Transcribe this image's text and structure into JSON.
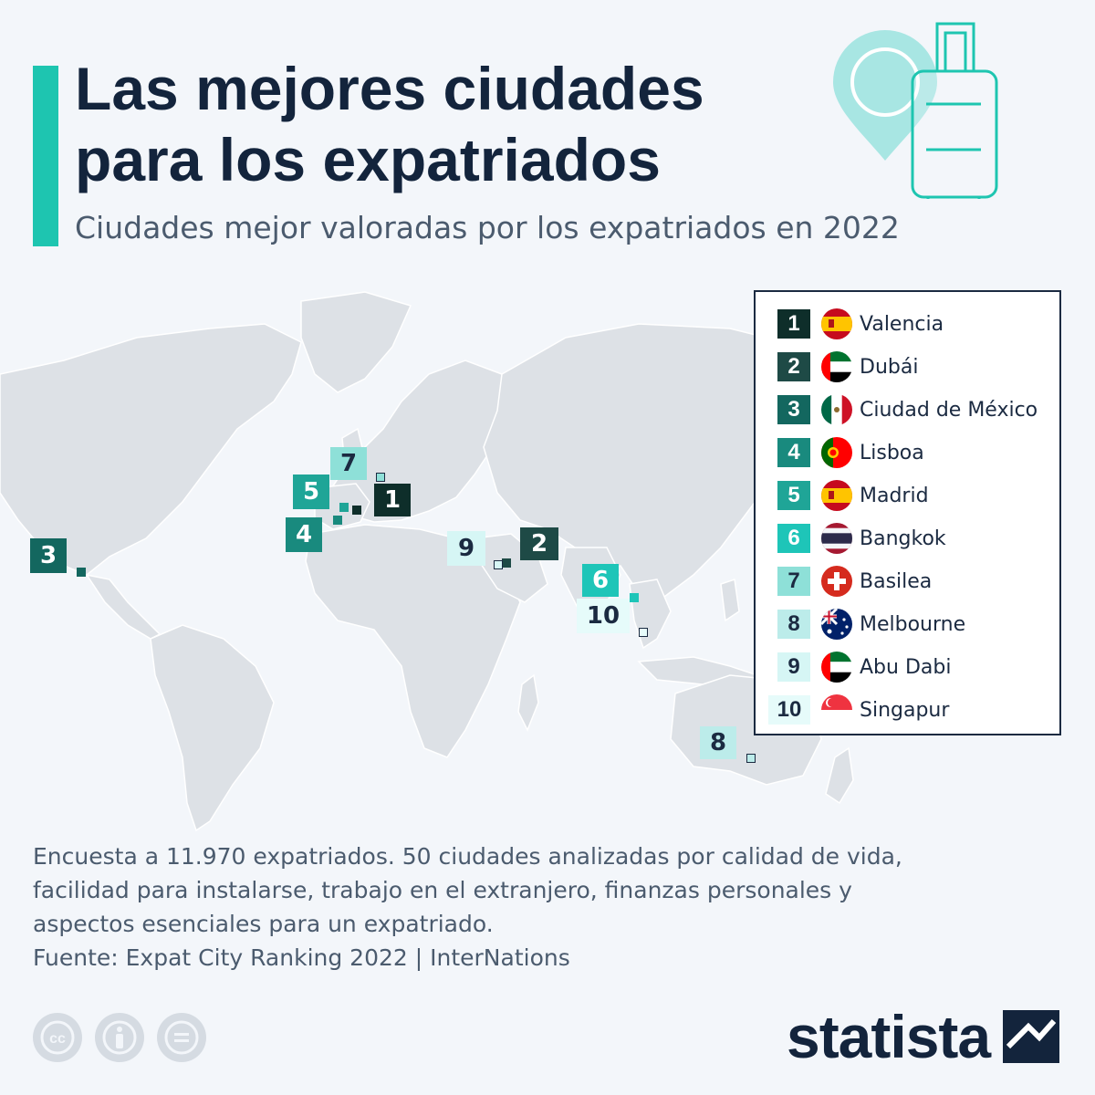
{
  "header": {
    "title": "Las mejores ciudades para los expatriados",
    "subtitle": "Ciudades mejor valoradas por los expatriados en 2022"
  },
  "colors": {
    "accent": "#1ec5b0",
    "title": "#13243c",
    "land": "#dde1e6",
    "rank_colors": [
      "#0e2e2a",
      "#1e4a46",
      "#13675f",
      "#198a7e",
      "#1fa597",
      "#1ec5b8",
      "#8ee0d8",
      "#bcecea",
      "#d6f6f5",
      "#e6fbfa"
    ]
  },
  "legend": {
    "items": [
      {
        "rank": "1",
        "city": "Valencia",
        "flag": "spain-flag-icon"
      },
      {
        "rank": "2",
        "city": "Dubái",
        "flag": "uae-flag-icon"
      },
      {
        "rank": "3",
        "city": "Ciudad de México",
        "flag": "mexico-flag-icon"
      },
      {
        "rank": "4",
        "city": "Lisboa",
        "flag": "portugal-flag-icon"
      },
      {
        "rank": "5",
        "city": "Madrid",
        "flag": "spain-flag-icon"
      },
      {
        "rank": "6",
        "city": "Bangkok",
        "flag": "thailand-flag-icon"
      },
      {
        "rank": "7",
        "city": "Basilea",
        "flag": "switzerland-flag-icon"
      },
      {
        "rank": "8",
        "city": "Melbourne",
        "flag": "australia-flag-icon"
      },
      {
        "rank": "9",
        "city": "Abu Dabi",
        "flag": "uae-flag-icon"
      },
      {
        "rank": "10",
        "city": "Singapur",
        "flag": "singapore-flag-icon"
      }
    ]
  },
  "map_labels": {
    "valencia": "1",
    "dubai": "2",
    "mexico": "3",
    "lisboa": "4",
    "madrid": "5",
    "bangkok": "6",
    "basilea": "7",
    "melbourne": "8",
    "abudabi": "9",
    "singapur": "10"
  },
  "footer": {
    "notes": "Encuesta a 11.970 expatriados. 50 ciudades analizadas por calidad de vida, facilidad para instalarse, trabajo en el extranjero, finanzas personales y aspectos esenciales para un expatriado.",
    "source": "Fuente: Expat City Ranking 2022 | InterNations",
    "brand": "statista",
    "license_icons": [
      "cc-icon",
      "attribution-icon",
      "no-derivatives-icon"
    ]
  }
}
